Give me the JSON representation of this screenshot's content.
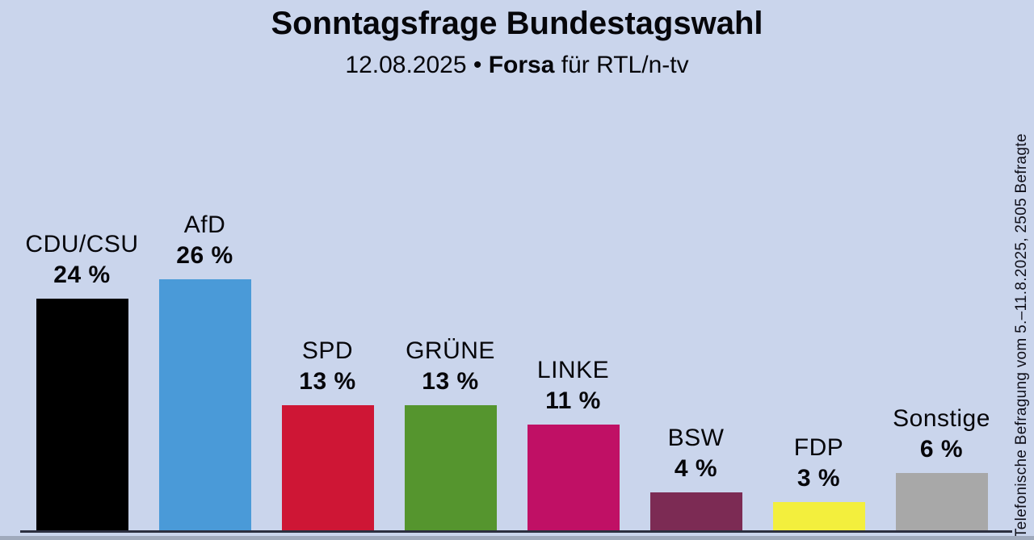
{
  "header": {
    "title": "Sonntagsfrage Bundestagswahl",
    "subtitle_prefix": "12.08.2025 • ",
    "subtitle_bold": "Forsa",
    "subtitle_suffix": " für RTL/n-tv"
  },
  "chart_data": {
    "type": "bar",
    "title": "Sonntagsfrage Bundestagswahl",
    "subtitle": "12.08.2025 • Forsa für RTL/n-tv",
    "categories": [
      "CDU/CSU",
      "AfD",
      "SPD",
      "GRÜNE",
      "LINKE",
      "BSW",
      "FDP",
      "Sonstige"
    ],
    "values": [
      24,
      26,
      13,
      13,
      11,
      4,
      3,
      6
    ],
    "value_labels": [
      "24 %",
      "26 %",
      "13 %",
      "13 %",
      "11 %",
      "4 %",
      "3 %",
      "6 %"
    ],
    "colors": [
      "#000000",
      "#4a9ad8",
      "#ce1635",
      "#55952e",
      "#c01065",
      "#7c2b54",
      "#f3ef3d",
      "#a8a8a8"
    ],
    "unit": "%",
    "ylim": [
      0,
      27
    ],
    "grid": false,
    "legend": "none",
    "value_label_position": "above-bar",
    "annotation": "Telefonische Befragung vom 5.–11.8.2025, 2505 Befragte",
    "background_color": "#cad5ec",
    "axis_line_color": "#2c2f40"
  }
}
